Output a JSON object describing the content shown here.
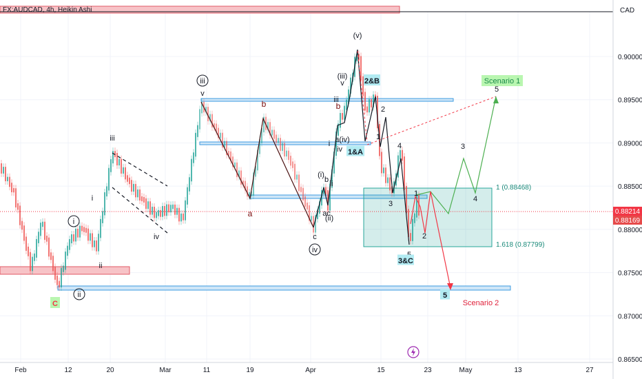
{
  "header": {
    "symbol_title": "FX:AUDCAD, 4h, Heikin Ashi",
    "currency": "CAD"
  },
  "chart_data": {
    "type": "candlestick",
    "ylim": [
      0.865,
      0.9075
    ],
    "y_ticks": [
      "0.86500",
      "0.87000",
      "0.87500",
      "0.88000",
      "0.88500",
      "0.89000",
      "0.89500",
      "0.90000"
    ],
    "y_tick_values": [
      0.865,
      0.87,
      0.875,
      0.88,
      0.885,
      0.89,
      0.895,
      0.9
    ],
    "x_ticks": [
      "Feb",
      "12",
      "20",
      "Mar",
      "11",
      "19",
      "Apr",
      "15",
      "23",
      "May",
      "13",
      "27"
    ],
    "price_labels": [
      {
        "text": "0.88214",
        "value": 0.88214,
        "color": "#f23645"
      },
      {
        "text": "0.88169",
        "value": 0.88169,
        "color": "#e64a4a"
      }
    ],
    "fib_labels": [
      {
        "text": "1 (0.88468)",
        "value": 0.88468
      },
      {
        "text": "1.618 (0.87799)",
        "value": 0.87799
      }
    ],
    "wave_labels": [
      {
        "t": "iii",
        "kind": "plain"
      },
      {
        "t": "i",
        "kind": "plain"
      },
      {
        "t": "ii",
        "kind": "plain"
      },
      {
        "t": "iv",
        "kind": "plain"
      },
      {
        "t": "i",
        "kind": "circle"
      },
      {
        "t": "ii",
        "kind": "circle"
      },
      {
        "t": "iii",
        "kind": "circle"
      },
      {
        "t": "iv",
        "kind": "circle"
      },
      {
        "t": "v",
        "kind": "plain"
      },
      {
        "t": "a",
        "kind": "red"
      },
      {
        "t": "b",
        "kind": "red"
      },
      {
        "t": "c",
        "kind": "plain"
      },
      {
        "t": "(v)",
        "kind": "plain"
      },
      {
        "t": "(iii)",
        "kind": "plain"
      },
      {
        "t": "v",
        "kind": "plain"
      },
      {
        "t": "iii",
        "kind": "plain"
      },
      {
        "t": "b",
        "kind": "red"
      },
      {
        "t": "i",
        "kind": "plain"
      },
      {
        "t": "iv",
        "kind": "plain"
      },
      {
        "t": "a(iv)",
        "kind": "plain"
      },
      {
        "t": "(i)",
        "kind": "plain"
      },
      {
        "t": "b",
        "kind": "plain"
      },
      {
        "t": "ii",
        "kind": "plain"
      },
      {
        "t": "ac",
        "kind": "plain"
      },
      {
        "t": "(ii)",
        "kind": "plain"
      },
      {
        "t": "2",
        "kind": "plain"
      },
      {
        "t": "1",
        "kind": "plain"
      },
      {
        "t": "4",
        "kind": "plain"
      },
      {
        "t": "3",
        "kind": "plain"
      },
      {
        "t": "1",
        "kind": "plain"
      },
      {
        "t": "2",
        "kind": "plain"
      },
      {
        "t": "5",
        "kind": "plain"
      },
      {
        "t": "3",
        "kind": "plain"
      },
      {
        "t": "4",
        "kind": "plain"
      },
      {
        "t": "5",
        "kind": "plain"
      }
    ],
    "boxed_labels": [
      "C",
      "2&B",
      "1&A",
      "3&C",
      "5"
    ],
    "scenarios": [
      "Scenario 1",
      "Scenario 2"
    ]
  }
}
